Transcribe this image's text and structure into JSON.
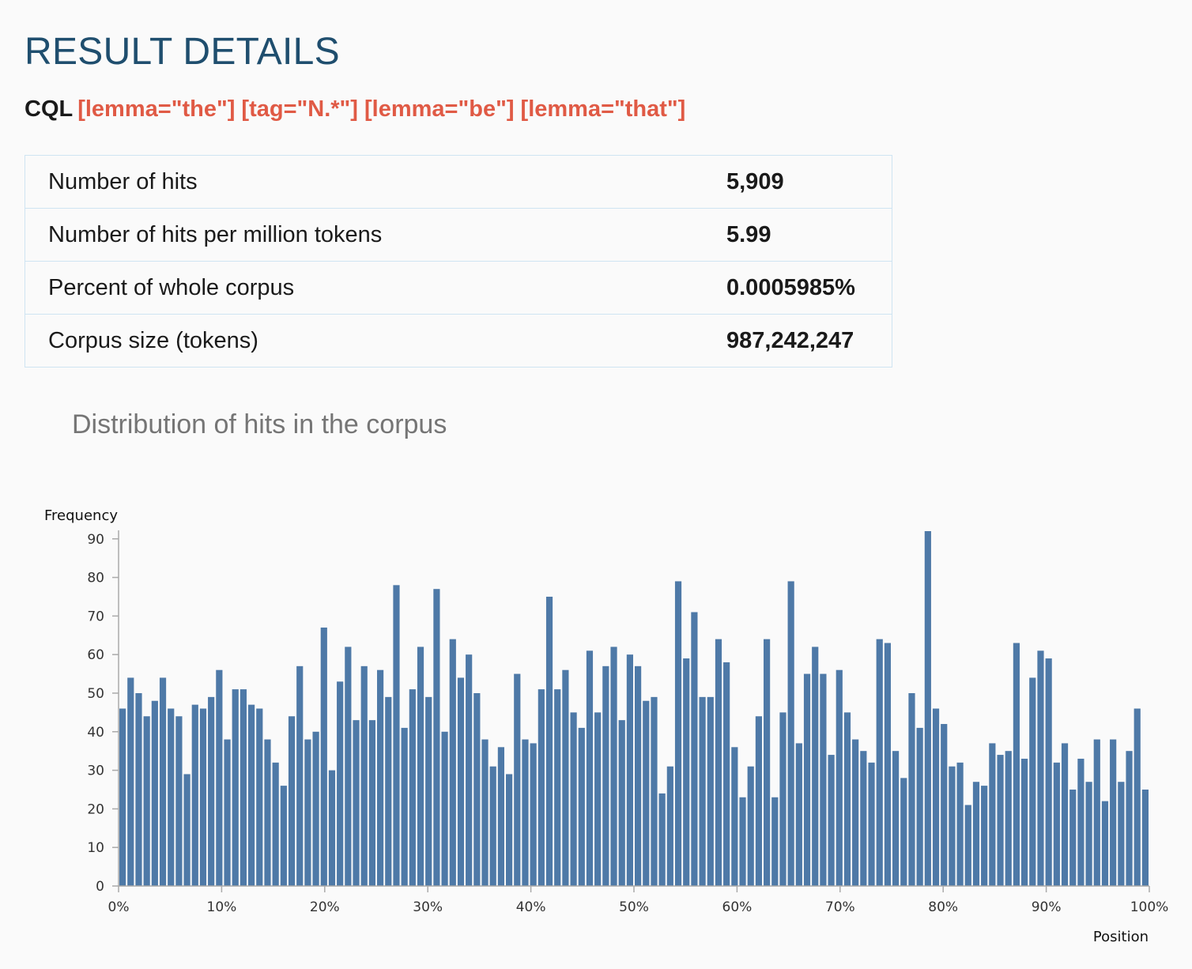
{
  "page": {
    "title": "RESULT DETAILS",
    "cql_label": "CQL",
    "cql_query": "[lemma=\"the\"] [tag=\"N.*\"] [lemma=\"be\"] [lemma=\"that\"]"
  },
  "stats": [
    {
      "label": "Number of hits",
      "value": "5,909"
    },
    {
      "label": "Number of hits per million tokens",
      "value": "5.99"
    },
    {
      "label": "Percent of whole corpus",
      "value": "0.0005985%"
    },
    {
      "label": "Corpus size (tokens)",
      "value": "987,242,247"
    }
  ],
  "chart": {
    "title": "Distribution of hits in the corpus"
  },
  "chart_data": {
    "type": "bar",
    "title": "Distribution of hits in the corpus",
    "xlabel": "Position",
    "ylabel": "Frequency",
    "ylim": [
      0,
      92
    ],
    "yticks": [
      0,
      10,
      20,
      30,
      40,
      50,
      60,
      70,
      80,
      90
    ],
    "xlim": [
      0,
      100
    ],
    "xticks": [
      "0%",
      "10%",
      "20%",
      "30%",
      "40%",
      "50%",
      "60%",
      "70%",
      "80%",
      "90%",
      "100%"
    ],
    "grid": false,
    "bar_color": "#4e79a7",
    "values": [
      46,
      54,
      50,
      44,
      48,
      54,
      46,
      44,
      29,
      47,
      46,
      49,
      56,
      38,
      51,
      51,
      47,
      46,
      38,
      32,
      26,
      44,
      57,
      38,
      40,
      67,
      30,
      53,
      62,
      43,
      57,
      43,
      56,
      49,
      78,
      41,
      51,
      62,
      49,
      77,
      40,
      64,
      54,
      60,
      50,
      38,
      31,
      36,
      29,
      55,
      38,
      37,
      51,
      75,
      51,
      56,
      45,
      41,
      61,
      45,
      57,
      62,
      43,
      60,
      57,
      48,
      49,
      24,
      31,
      79,
      59,
      71,
      49,
      49,
      64,
      58,
      36,
      23,
      31,
      44,
      64,
      23,
      45,
      79,
      37,
      55,
      62,
      55,
      34,
      56,
      45,
      38,
      35,
      32,
      64,
      63,
      35,
      28,
      50,
      41,
      92,
      46,
      42,
      31,
      32,
      21,
      27,
      26,
      37,
      34,
      35,
      63,
      33,
      54,
      61,
      59,
      32,
      37,
      25,
      33,
      27,
      38,
      22,
      38,
      27,
      35,
      46,
      25
    ]
  }
}
